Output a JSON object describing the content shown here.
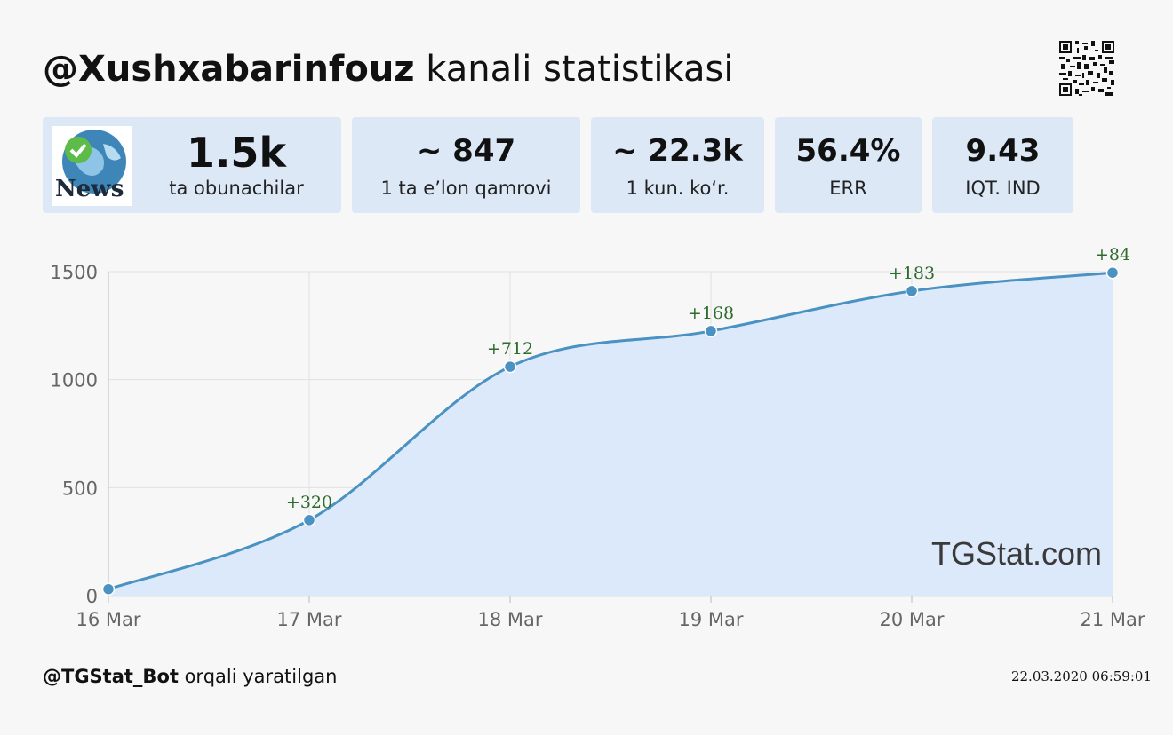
{
  "header": {
    "channel": "@Xushxabarinfouz",
    "suffix": " kanali statistikasi"
  },
  "stats": [
    {
      "value": "1.5k",
      "label": "ta obunachilar"
    },
    {
      "value": "~ 847",
      "label": "1 ta e’lon qamrovi"
    },
    {
      "value": "~ 22.3k",
      "label": "1 kun. ko‘r."
    },
    {
      "value": "56.4%",
      "label": "ERR"
    },
    {
      "value": "9.43",
      "label": "IQT. IND"
    }
  ],
  "avatar": {
    "text": "News",
    "icon": "globe-check-icon"
  },
  "chart_data": {
    "type": "area",
    "categories": [
      "16 Mar",
      "17 Mar",
      "18 Mar",
      "19 Mar",
      "20 Mar",
      "21 Mar"
    ],
    "values": [
      30,
      350,
      1060,
      1225,
      1410,
      1495
    ],
    "annotations": [
      "",
      "+320",
      "+712",
      "+168",
      "+183",
      "+84"
    ],
    "yticks": [
      0,
      500,
      1000,
      1500
    ],
    "ylim": [
      0,
      1500
    ],
    "title": "",
    "xlabel": "",
    "ylabel": "",
    "grid": true,
    "watermark": "TGStat.com",
    "colors": {
      "line": "#4a92c2",
      "fill": "#dce9fb",
      "annotation": "#2e6b2e",
      "grid": "#e2e2e2",
      "axis": "#bbbbbb",
      "tick": "#666666"
    }
  },
  "footer": {
    "bot": "@TGStat_Bot",
    "suffix": " orqali yaratilgan",
    "timestamp": "22.03.2020 06:59:01"
  }
}
